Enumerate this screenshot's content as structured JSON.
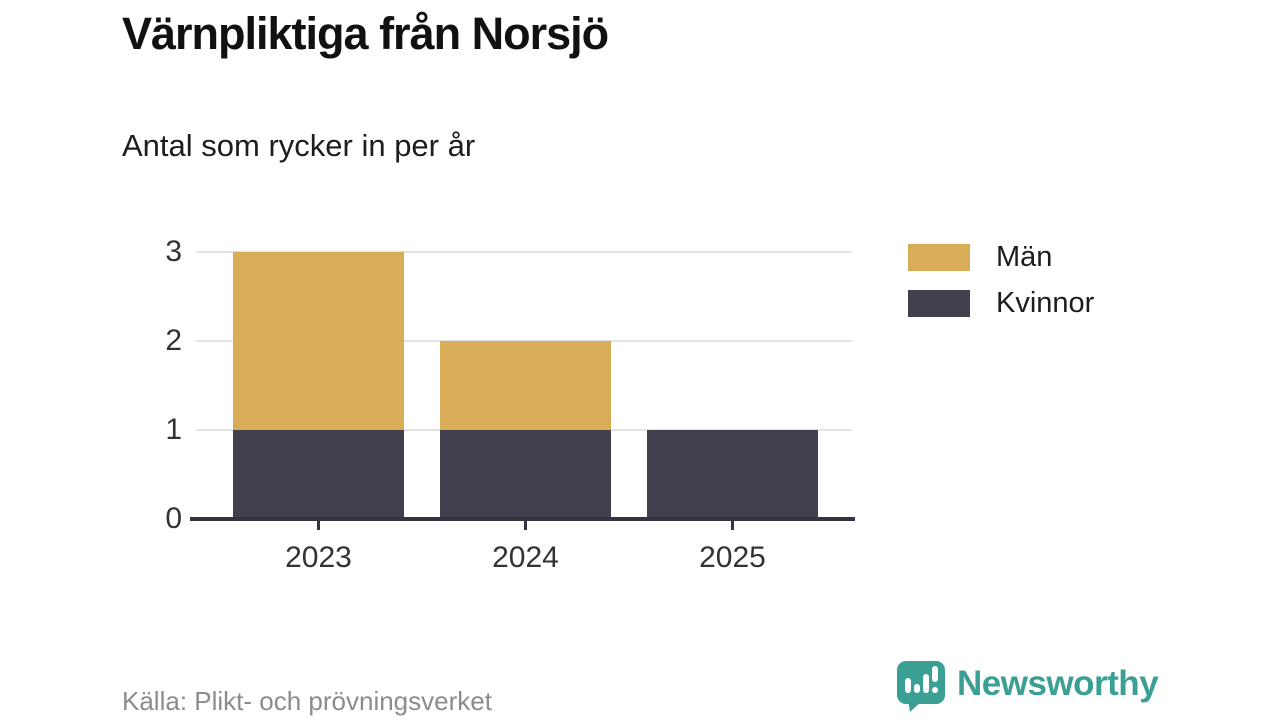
{
  "chart_data": {
    "type": "bar",
    "stacked": true,
    "title": "Värnpliktiga från Norsjö",
    "subtitle": "Antal som rycker in per år",
    "categories": [
      "2023",
      "2024",
      "2025"
    ],
    "series": [
      {
        "name": "Män",
        "color": "#d9ac58",
        "values": [
          2,
          1,
          0
        ]
      },
      {
        "name": "Kvinnor",
        "color": "#423f4f",
        "values": [
          1,
          1,
          1
        ]
      }
    ],
    "xlabel": "",
    "ylabel": "",
    "ylim": [
      0,
      3
    ],
    "yticks": [
      0,
      1,
      2,
      3
    ],
    "grid": true,
    "legend_position": "right",
    "source": "Källa: Plikt- och prövningsverket"
  },
  "footer": {
    "brand": "Newsworthy"
  },
  "palette": {
    "men": "#d9ac58",
    "women": "#423f4f",
    "grid": "#e3e3e3",
    "axis": "#35333f",
    "brand_teal": "#3aa093",
    "muted_text": "#8c8c8c"
  }
}
